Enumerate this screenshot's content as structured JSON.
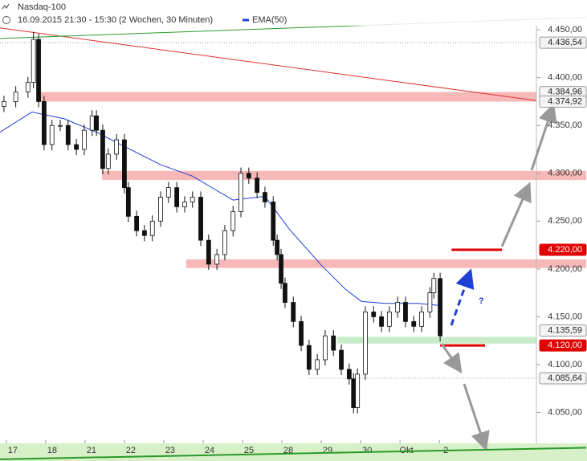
{
  "chart_data": {
    "type": "candlestick",
    "title": "Nasdaq-100",
    "subtitle": "16.09.2015 21:30 - 15:30 (2 Wochen, 30 Minuten)",
    "xlim": [
      -0.16,
      14.73
    ],
    "xticks": [
      {
        "value": 0,
        "label": "17"
      },
      {
        "value": 1,
        "label": "18"
      },
      {
        "value": 2,
        "label": "21"
      },
      {
        "value": 3,
        "label": "22"
      },
      {
        "value": 4,
        "label": "23"
      },
      {
        "value": 5,
        "label": "24"
      },
      {
        "value": 6,
        "label": "25"
      },
      {
        "value": 7,
        "label": "28"
      },
      {
        "value": 8,
        "label": "29"
      },
      {
        "value": 9,
        "label": "30"
      },
      {
        "value": 10,
        "label": "Okt"
      },
      {
        "value": 11,
        "label": "2"
      }
    ],
    "ylim": [
      4021,
      4456
    ],
    "yticks": [
      {
        "value": 4450,
        "label": "4.450,00"
      },
      {
        "value": 4400,
        "label": "4.400,00"
      },
      {
        "value": 4350,
        "label": "4.350,00"
      },
      {
        "value": 4300,
        "label": "4.300,00"
      },
      {
        "value": 4250,
        "label": "4.250,00"
      },
      {
        "value": 4200,
        "label": "4.200,00"
      },
      {
        "value": 4150,
        "label": "4.150,00"
      },
      {
        "value": 4100,
        "label": "4.100,00"
      },
      {
        "value": 4050,
        "label": "4.050,00"
      }
    ],
    "candles": {
      "x": [
        -0.06,
        0.24,
        0.55,
        0.69,
        0.82,
        0.96,
        1.16,
        1.37,
        1.57,
        1.78,
        1.98,
        2.18,
        2.29,
        2.45,
        2.59,
        2.8,
        3.0,
        3.1,
        3.31,
        3.51,
        3.71,
        3.92,
        4.12,
        4.33,
        4.53,
        4.73,
        4.94,
        5.14,
        5.35,
        5.55,
        5.76,
        5.96,
        6.16,
        6.37,
        6.57,
        6.78,
        6.88,
        6.98,
        7.08,
        7.29,
        7.49,
        7.69,
        7.9,
        8.1,
        8.31,
        8.51,
        8.71,
        8.82,
        8.92,
        9.12,
        9.33,
        9.53,
        9.73,
        9.94,
        10.14,
        10.35,
        10.55,
        10.76,
        10.86,
        11.02
      ],
      "open": [
        4370,
        4375,
        4385,
        4395,
        4440,
        4375,
        4330,
        4350,
        4350,
        4330,
        4325,
        4345,
        4360,
        4345,
        4305,
        4320,
        4335,
        4285,
        4255,
        4240,
        4235,
        4250,
        4275,
        4285,
        4265,
        4270,
        4275,
        4230,
        4205,
        4215,
        4240,
        4260,
        4300,
        4295,
        4280,
        4270,
        4230,
        4215,
        4185,
        4165,
        4145,
        4120,
        4095,
        4105,
        4130,
        4115,
        4095,
        4085,
        4055,
        4090,
        4155,
        4150,
        4140,
        4155,
        4165,
        4145,
        4140,
        4155,
        4175,
        4190
      ],
      "high": [
        4381,
        4391,
        4401,
        4448,
        4446,
        4381,
        4356,
        4356,
        4356,
        4336,
        4351,
        4366,
        4366,
        4351,
        4326,
        4341,
        4341,
        4291,
        4261,
        4246,
        4256,
        4281,
        4291,
        4291,
        4276,
        4281,
        4281,
        4236,
        4221,
        4246,
        4266,
        4306,
        4306,
        4301,
        4286,
        4276,
        4236,
        4221,
        4191,
        4171,
        4151,
        4126,
        4111,
        4136,
        4136,
        4121,
        4101,
        4091,
        4096,
        4161,
        4161,
        4156,
        4161,
        4171,
        4171,
        4151,
        4161,
        4181,
        4196,
        4196
      ],
      "low": [
        4364,
        4369,
        4379,
        4389,
        4369,
        4324,
        4324,
        4344,
        4324,
        4319,
        4319,
        4339,
        4339,
        4299,
        4299,
        4314,
        4279,
        4249,
        4234,
        4229,
        4229,
        4244,
        4269,
        4259,
        4259,
        4264,
        4224,
        4199,
        4199,
        4209,
        4234,
        4254,
        4289,
        4274,
        4264,
        4224,
        4209,
        4179,
        4159,
        4139,
        4114,
        4089,
        4089,
        4099,
        4109,
        4089,
        4079,
        4049,
        4049,
        4084,
        4144,
        4134,
        4134,
        4149,
        4139,
        4134,
        4134,
        4149,
        4169,
        4124
      ],
      "close": [
        4375,
        4385,
        4395,
        4440,
        4375,
        4330,
        4350,
        4350,
        4330,
        4325,
        4345,
        4360,
        4345,
        4305,
        4320,
        4335,
        4285,
        4255,
        4240,
        4235,
        4250,
        4275,
        4285,
        4265,
        4270,
        4275,
        4230,
        4205,
        4215,
        4240,
        4260,
        4300,
        4295,
        4280,
        4270,
        4230,
        4215,
        4185,
        4165,
        4145,
        4120,
        4095,
        4105,
        4130,
        4115,
        4095,
        4085,
        4055,
        4090,
        4155,
        4150,
        4140,
        4155,
        4165,
        4145,
        4140,
        4155,
        4175,
        4190,
        4130
      ]
    },
    "ema": {
      "name": "EMA(50)",
      "color": "#1f3fd6",
      "x": [
        -0.16,
        0.65,
        1.47,
        2.29,
        3.1,
        3.92,
        4.73,
        5.14,
        5.76,
        6.57,
        7.18,
        8.0,
        8.61,
        9.02,
        9.63,
        10.45,
        10.96
      ],
      "values": [
        4343,
        4364,
        4357,
        4343,
        4326,
        4309,
        4297,
        4287,
        4272,
        4276,
        4242,
        4204,
        4179,
        4166,
        4164,
        4164,
        4162
      ]
    },
    "trendlines": [
      {
        "color": "#e03030",
        "x": [
          -0.16,
          13.47
        ],
        "values": [
          4452,
          4376
        ]
      },
      {
        "color": "#2a9a2a",
        "x": [
          -0.16,
          14.73
        ],
        "values": [
          4441,
          4463
        ]
      },
      {
        "color": "#2a9a2a",
        "x": [
          -0.16,
          14.73
        ],
        "values": [
          4001,
          4013
        ]
      }
    ],
    "zones": [
      {
        "color": "#f7b8b8",
        "x": [
          0.82,
          13.47
        ],
        "range": [
          4374.92,
          4384.96
        ]
      },
      {
        "color": "#f7b8b8",
        "x": [
          2.43,
          14.73
        ],
        "range": [
          4293,
          4302.5
        ]
      },
      {
        "color": "#f7b8b8",
        "x": [
          4.57,
          14.73
        ],
        "range": [
          4201,
          4210
        ]
      },
      {
        "color": "#c8ecc8",
        "x": [
          8.41,
          13.47
        ],
        "range": [
          4122,
          4129
        ]
      }
    ],
    "levels": [
      {
        "color": "#e00000",
        "x": [
          11.31,
          12.59
        ],
        "value": 4220
      },
      {
        "color": "#e00000",
        "x": [
          11.02,
          12.16
        ],
        "value": 4120
      }
    ],
    "dotted": [
      {
        "x": [
          -0.16,
          13.47
        ],
        "value": 4436.54
      },
      {
        "x": [
          7.69,
          13.47
        ],
        "value": 4085.64
      }
    ],
    "price_markers": [
      {
        "value": 4436.54,
        "label": "4.436,54",
        "color": "#f4f4f4"
      },
      {
        "value": 4384.96,
        "label": "4.384,96",
        "color": "#f4f4f4"
      },
      {
        "value": 4374.92,
        "label": "4.374,92",
        "color": "#f4f4f4"
      },
      {
        "value": 4220,
        "label": "4.220,00",
        "color": "#e00000"
      },
      {
        "value": 4135.59,
        "label": "4.135,59",
        "color": "#f4f4f4"
      },
      {
        "value": 4120,
        "label": "4.120,00",
        "color": "#e00000"
      },
      {
        "value": 4085.64,
        "label": "4.085,64",
        "color": "#f4f4f4"
      }
    ],
    "annotation": "?"
  }
}
